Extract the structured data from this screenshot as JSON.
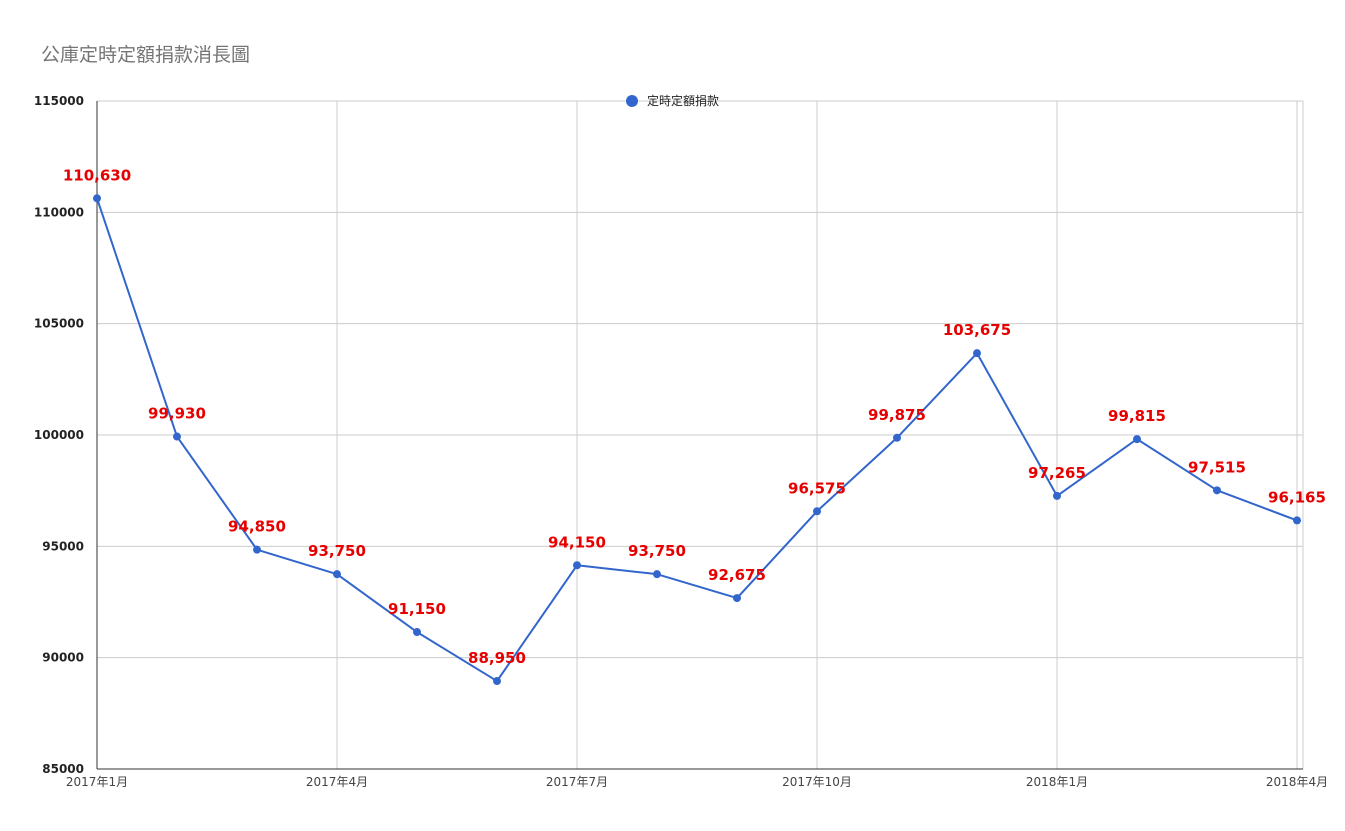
{
  "chart_data": {
    "type": "line",
    "title": "公庫定時定額捐款消長圖",
    "xlabel": "",
    "ylabel": "",
    "ylim": [
      85000,
      115000
    ],
    "yticks": [
      85000,
      90000,
      95000,
      100000,
      105000,
      110000,
      115000
    ],
    "grid": true,
    "legend_position": "top-center",
    "x": [
      "2017-01",
      "2017-02",
      "2017-03",
      "2017-04",
      "2017-05",
      "2017-06",
      "2017-07",
      "2017-08",
      "2017-09",
      "2017-10",
      "2017-11",
      "2017-12",
      "2018-01",
      "2018-02",
      "2018-03",
      "2018-04"
    ],
    "xtick_labels": [
      "2017年1月",
      "2017年4月",
      "2017年7月",
      "2017年10月",
      "2018年1月",
      "2018年4月"
    ],
    "xtick_positions": [
      "2017-01",
      "2017-04",
      "2017-07",
      "2017-10",
      "2018-01",
      "2018-04"
    ],
    "series": [
      {
        "name": "定時定額捐款",
        "color": "#3366cc",
        "values": [
          110630,
          99930,
          94850,
          93750,
          91150,
          88950,
          94150,
          93750,
          92675,
          96575,
          99875,
          103675,
          97265,
          99815,
          97515,
          96165
        ],
        "labels": [
          "110,630",
          "99,930",
          "94,850",
          "93,750",
          "91,150",
          "88,950",
          "94,150",
          "93,750",
          "92,675",
          "96,575",
          "99,875",
          "103,675",
          "97,265",
          "99,815",
          "97,515",
          "96,165"
        ]
      }
    ],
    "label_color": "#e60000",
    "grid_color": "#cccccc"
  }
}
